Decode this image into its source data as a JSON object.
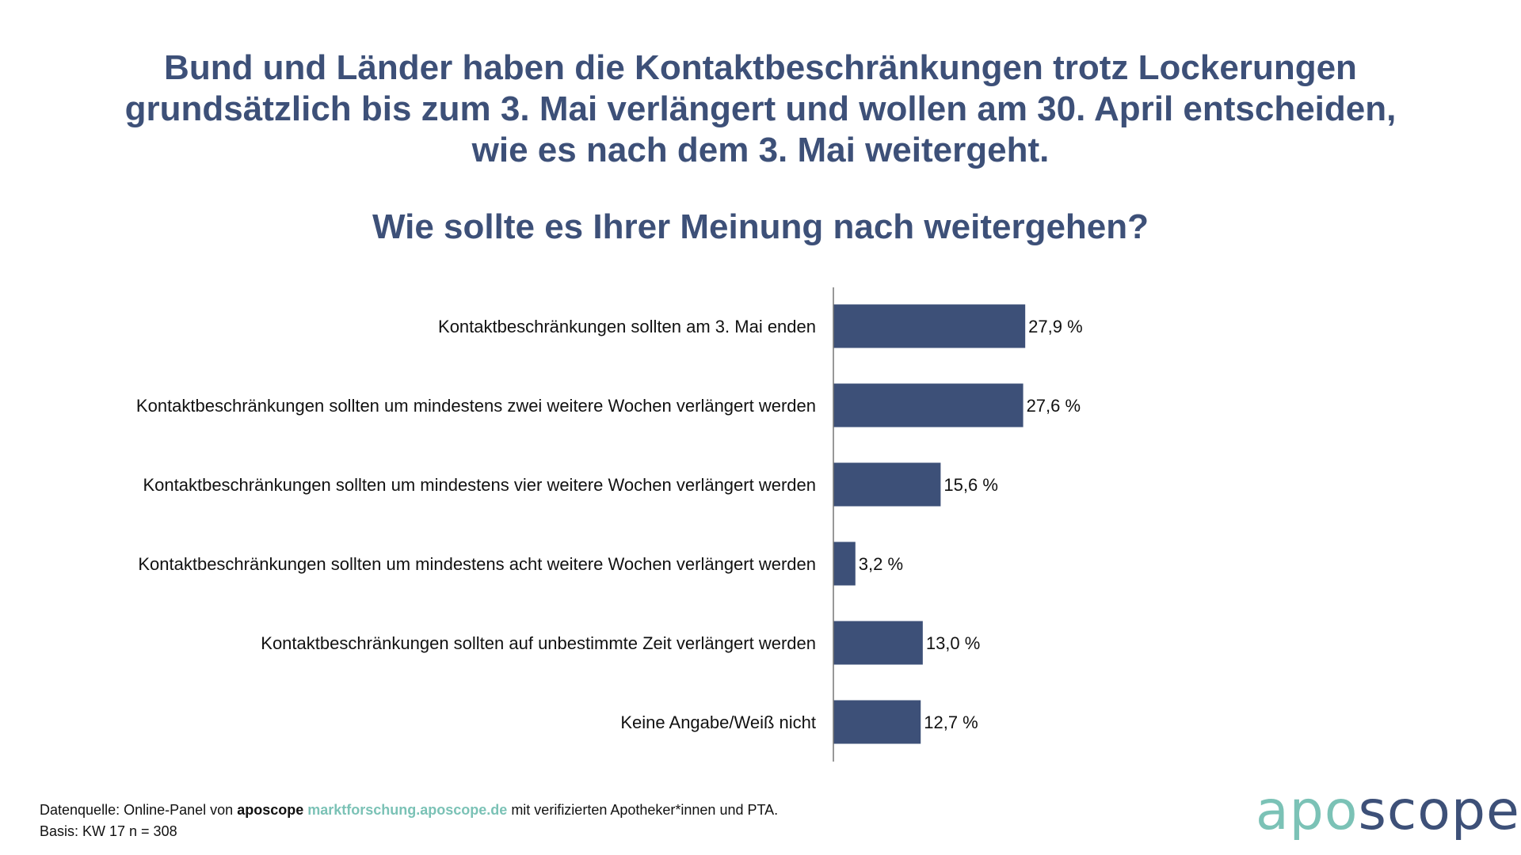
{
  "title_lines": [
    "Bund und Länder haben die Kontaktbeschränkungen trotz Lockerungen",
    "grundsätzlich bis zum 3. Mai verlängert und wollen am 30. April entscheiden,",
    "wie es nach dem 3. Mai weitergeht."
  ],
  "question": "Wie sollte es Ihrer Meinung nach weitergehen?",
  "chart_data": {
    "type": "bar",
    "orientation": "horizontal",
    "title": "Wie sollte es Ihrer Meinung nach weitergehen?",
    "categories": [
      "Kontaktbeschränkungen sollten am 3. Mai enden",
      "Kontaktbeschränkungen sollten um mindestens zwei weitere Wochen verlängert werden",
      "Kontaktbeschränkungen sollten um mindestens vier weitere Wochen verlängert werden",
      "Kontaktbeschränkungen sollten um mindestens acht weitere Wochen verlängert werden",
      "Kontaktbeschränkungen sollten auf unbestimmte Zeit verlängert werden",
      "Keine Angabe/Weiß nicht"
    ],
    "values": [
      27.9,
      27.6,
      15.6,
      3.2,
      13.0,
      12.7
    ],
    "value_labels": [
      "27,9 %",
      "27,6 %",
      "15,6 %",
      "3,2 %",
      "13,0 %",
      "12,7 %"
    ],
    "unit": "%",
    "xlabel": "",
    "ylabel": "",
    "bar_color": "#3d5078"
  },
  "footer": {
    "source_prefix": "Datenquelle: Online-Panel von",
    "brand": "aposcope",
    "link": "marktforschung.aposcope.de",
    "source_suffix": "mit verifizierten Apotheker*innen und PTA.",
    "basis": "Basis: KW 17 n = 308"
  },
  "logo": {
    "part1": "apo",
    "part2": "scope"
  }
}
